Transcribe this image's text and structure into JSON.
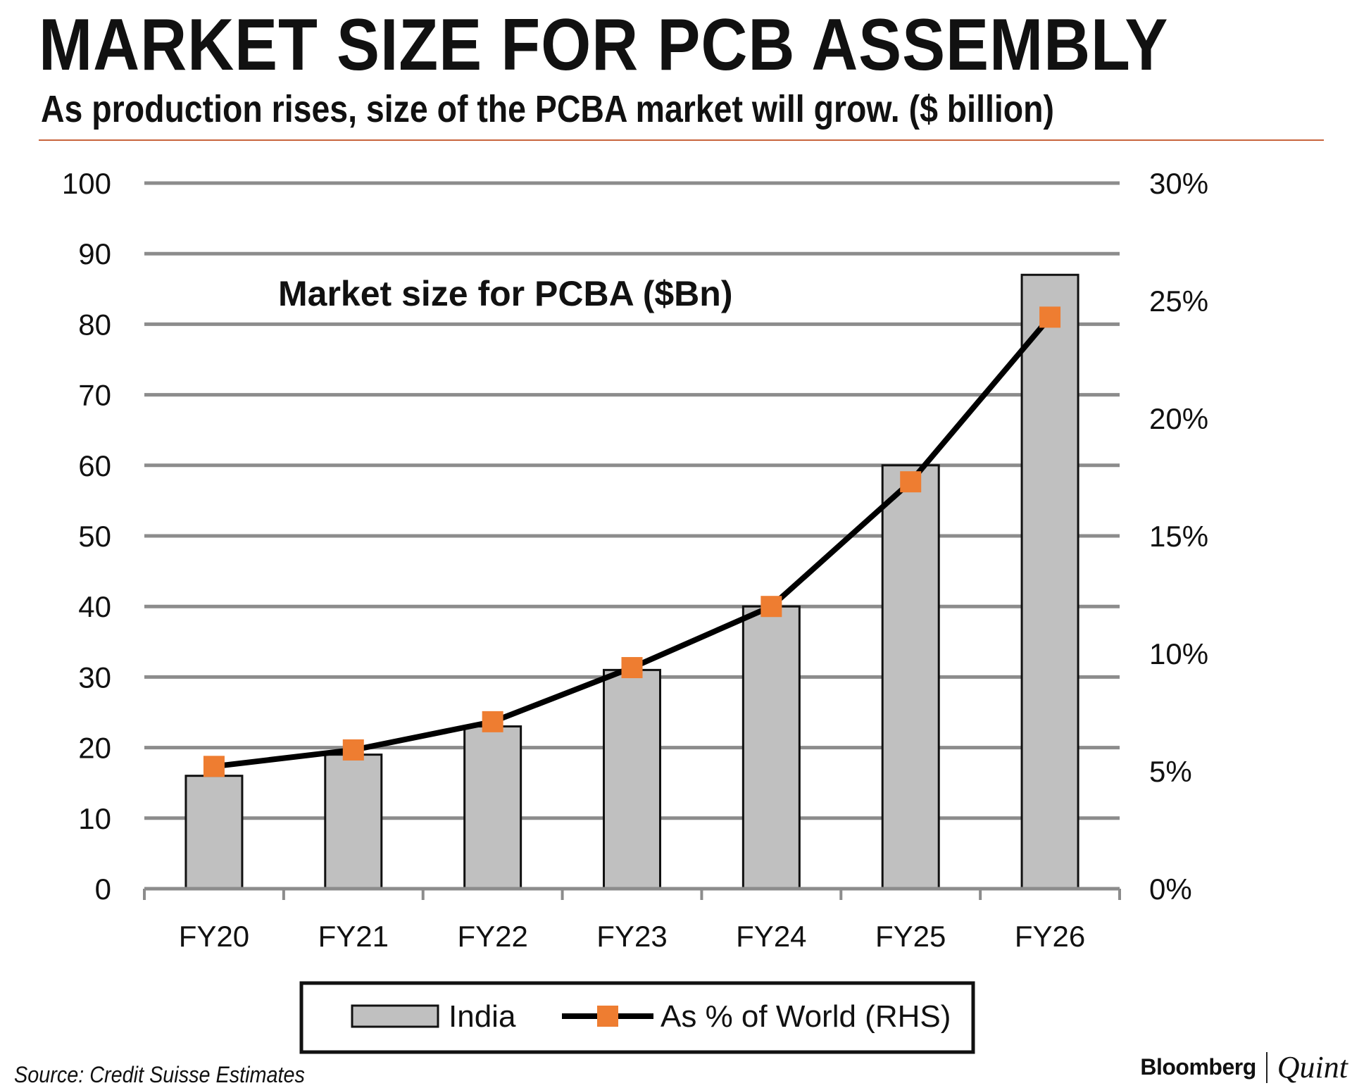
{
  "header": {
    "title": "MARKET SIZE FOR PCB ASSEMBLY",
    "subtitle": "As production rises, size of the PCBA market will grow. ($ billion)"
  },
  "chart_data": {
    "type": "bar",
    "title": "MARKET SIZE FOR PCB ASSEMBLY",
    "subtitle": "As production rises, size of the PCBA market will grow. ($ billion)",
    "annotation": "Market size for PCBA ($Bn)",
    "categories": [
      "FY20",
      "FY21",
      "FY22",
      "FY23",
      "FY24",
      "FY25",
      "FY26"
    ],
    "series": [
      {
        "name": "India",
        "type": "bar",
        "axis": "left",
        "values": [
          16,
          19,
          23,
          31,
          40,
          60,
          87
        ],
        "color": "#c0c0c0"
      },
      {
        "name": "As % of World (RHS)",
        "type": "line",
        "axis": "right",
        "values": [
          5.2,
          5.9,
          7.1,
          9.4,
          12.0,
          17.3,
          24.3
        ],
        "color": "#000000",
        "marker_color": "#ee7d31"
      }
    ],
    "y_left": {
      "min": 0,
      "max": 100,
      "ticks": [
        "0",
        "10",
        "20",
        "30",
        "40",
        "50",
        "60",
        "70",
        "80",
        "90",
        "100"
      ]
    },
    "y_right": {
      "min": 0,
      "max": 30,
      "ticks": [
        "0%",
        "5%",
        "10%",
        "15%",
        "20%",
        "25%",
        "30%"
      ]
    },
    "grid": true,
    "legend": {
      "position": "bottom",
      "entries": [
        "India",
        "As % of World (RHS)"
      ]
    }
  },
  "footer": {
    "source": "Source: Credit Suisse Estimates",
    "brand_primary": "Bloomberg",
    "brand_secondary": "Quint"
  }
}
